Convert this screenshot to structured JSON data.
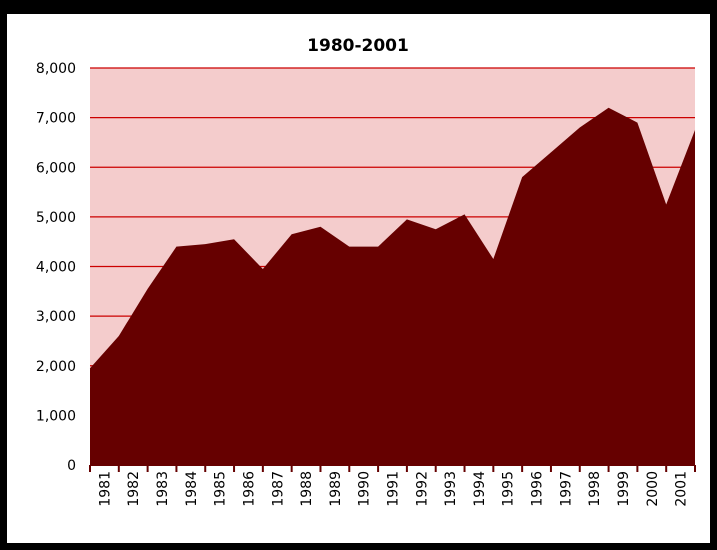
{
  "chart_data": {
    "type": "area",
    "title": "1980-2001",
    "xlabel": "",
    "ylabel": "",
    "ylim": [
      0,
      8000
    ],
    "yticks": [
      0,
      1000,
      2000,
      3000,
      4000,
      5000,
      6000,
      7000,
      8000
    ],
    "ytick_labels": [
      "0",
      "1,000",
      "2,000",
      "3,000",
      "4,000",
      "5,000",
      "6,000",
      "7,000",
      "8,000"
    ],
    "categories": [
      "1981",
      "1982",
      "1983",
      "1984",
      "1985",
      "1986",
      "1987",
      "1988",
      "1989",
      "1990",
      "1991",
      "1992",
      "1993",
      "1994",
      "1995",
      "1996",
      "1997",
      "1998",
      "1999",
      "2000",
      "2001"
    ],
    "x": [
      1980,
      1981,
      1982,
      1983,
      1984,
      1985,
      1986,
      1987,
      1988,
      1989,
      1990,
      1991,
      1992,
      1993,
      1994,
      1995,
      1996,
      1997,
      1998,
      1999,
      2000,
      2001
    ],
    "values": [
      1950,
      2600,
      3550,
      4400,
      4450,
      4550,
      3950,
      4650,
      4800,
      4400,
      4400,
      4950,
      4750,
      5050,
      4150,
      5800,
      6300,
      6800,
      7200,
      6900,
      5250,
      6750
    ],
    "grid": true,
    "legend": "none",
    "colors": {
      "plot_background": "#f4cccc",
      "gridline": "#cc0000",
      "area_fill": "#660000",
      "axis": "#660000",
      "frame": "#000000"
    }
  }
}
